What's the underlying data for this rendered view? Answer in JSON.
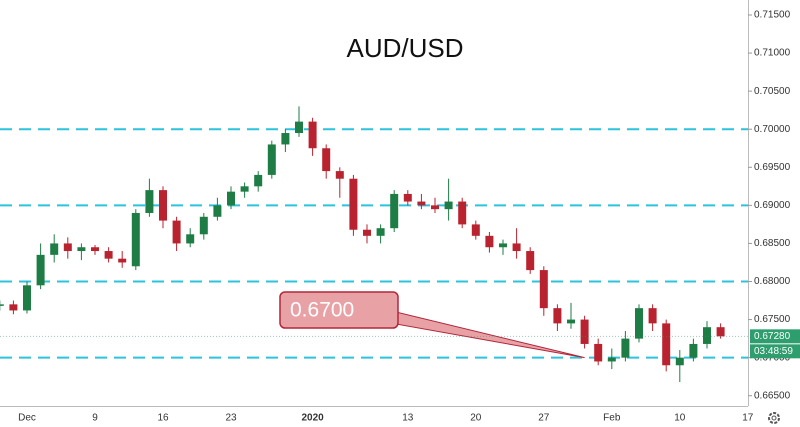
{
  "chart_data": {
    "type": "candlestick",
    "title": "AUD/USD",
    "categories": [
      null,
      null,
      "Dec",
      null,
      null,
      null,
      null,
      "9",
      null,
      null,
      null,
      null,
      "16",
      null,
      null,
      null,
      null,
      "23",
      null,
      null,
      null,
      null,
      null,
      "2020",
      null,
      null,
      null,
      null,
      null,
      null,
      "13",
      null,
      null,
      null,
      null,
      "20",
      null,
      null,
      null,
      null,
      "27",
      null,
      null,
      null,
      null,
      "Feb",
      null,
      null,
      null,
      null,
      "10",
      null,
      null,
      null,
      null,
      "17"
    ],
    "open": [
      0.6768,
      0.677,
      0.6762,
      0.6795,
      0.6835,
      0.685,
      0.684,
      0.6845,
      0.684,
      0.683,
      0.682,
      0.689,
      0.692,
      0.688,
      0.685,
      0.6862,
      0.6885,
      0.69,
      0.6918,
      0.6925,
      0.694,
      0.698,
      0.6995,
      0.701,
      0.6975,
      0.6945,
      0.6935,
      0.6868,
      0.686,
      0.687,
      0.6915,
      0.6905,
      0.69,
      0.6895,
      0.6905,
      0.6875,
      0.686,
      0.6845,
      0.685,
      0.684,
      0.6815,
      0.6765,
      0.6745,
      0.675,
      0.6718,
      0.6695,
      0.67,
      0.6725,
      0.6765,
      0.6745,
      0.669,
      0.67,
      0.6718,
      0.674,
      null,
      null
    ],
    "high": [
      0.6775,
      0.6775,
      0.68,
      0.685,
      0.6862,
      0.6858,
      0.685,
      0.6848,
      0.6845,
      0.684,
      0.6895,
      0.6935,
      0.6925,
      0.6885,
      0.687,
      0.689,
      0.691,
      0.6925,
      0.693,
      0.6945,
      0.6985,
      0.7,
      0.703,
      0.7015,
      0.698,
      0.695,
      0.694,
      0.6875,
      0.6875,
      0.692,
      0.692,
      0.6915,
      0.691,
      0.6935,
      0.691,
      0.688,
      0.6865,
      0.6855,
      0.687,
      0.6845,
      0.682,
      0.677,
      0.6772,
      0.6755,
      0.6725,
      0.6712,
      0.6735,
      0.677,
      0.677,
      0.675,
      0.671,
      0.6725,
      0.6748,
      0.6745,
      null,
      null
    ],
    "low": [
      0.6762,
      0.6757,
      0.6758,
      0.679,
      0.6825,
      0.683,
      0.6828,
      0.6835,
      0.6825,
      0.6818,
      0.6815,
      0.6885,
      0.687,
      0.684,
      0.6845,
      0.6855,
      0.688,
      0.6895,
      0.691,
      0.6918,
      0.6935,
      0.697,
      0.699,
      0.6965,
      0.6935,
      0.691,
      0.686,
      0.685,
      0.685,
      0.6865,
      0.69,
      0.6895,
      0.689,
      0.688,
      0.687,
      0.6855,
      0.6838,
      0.6835,
      0.683,
      0.681,
      0.6755,
      0.6735,
      0.6738,
      0.6712,
      0.669,
      0.6685,
      0.6695,
      0.672,
      0.6735,
      0.6682,
      0.6668,
      0.6695,
      0.6712,
      0.6725,
      null,
      null
    ],
    "close": [
      0.677,
      0.6762,
      0.6795,
      0.6835,
      0.685,
      0.684,
      0.6845,
      0.684,
      0.683,
      0.6825,
      0.689,
      0.692,
      0.688,
      0.685,
      0.6862,
      0.6885,
      0.69,
      0.6918,
      0.6925,
      0.694,
      0.698,
      0.6995,
      0.701,
      0.6975,
      0.6945,
      0.6935,
      0.6868,
      0.686,
      0.687,
      0.6915,
      0.6905,
      0.69,
      0.6895,
      0.6905,
      0.6875,
      0.686,
      0.6845,
      0.685,
      0.684,
      0.6815,
      0.6765,
      0.6745,
      0.675,
      0.6718,
      0.6695,
      0.67,
      0.6725,
      0.6765,
      0.6745,
      0.669,
      0.67,
      0.6718,
      0.674,
      0.6728,
      null,
      null
    ],
    "up_color": "#1e7d45",
    "down_color": "#b8232f",
    "ylim": [
      0.66365,
      0.71697
    ],
    "yticks": [
      {
        "value": 0.665,
        "label": "0.66500"
      },
      {
        "value": 0.67,
        "label": "0.67000"
      },
      {
        "value": 0.675,
        "label": "0.67500"
      },
      {
        "value": 0.68,
        "label": "0.68000"
      },
      {
        "value": 0.685,
        "label": "0.68500"
      },
      {
        "value": 0.69,
        "label": "0.69000"
      },
      {
        "value": 0.695,
        "label": "0.69500"
      },
      {
        "value": 0.7,
        "label": "0.70000"
      },
      {
        "value": 0.705,
        "label": "0.70500"
      },
      {
        "value": 0.71,
        "label": "0.71000"
      },
      {
        "value": 0.715,
        "label": "0.71500"
      }
    ],
    "hlines": [
      0.7,
      0.69,
      0.68,
      0.67
    ],
    "hline_color": "#2bc4dc",
    "callout": {
      "text": "0.6700",
      "value": 0.67,
      "at": 43
    },
    "last_price": {
      "value": 0.6728,
      "label": "0.67280"
    },
    "countdown": "03:48:59"
  }
}
